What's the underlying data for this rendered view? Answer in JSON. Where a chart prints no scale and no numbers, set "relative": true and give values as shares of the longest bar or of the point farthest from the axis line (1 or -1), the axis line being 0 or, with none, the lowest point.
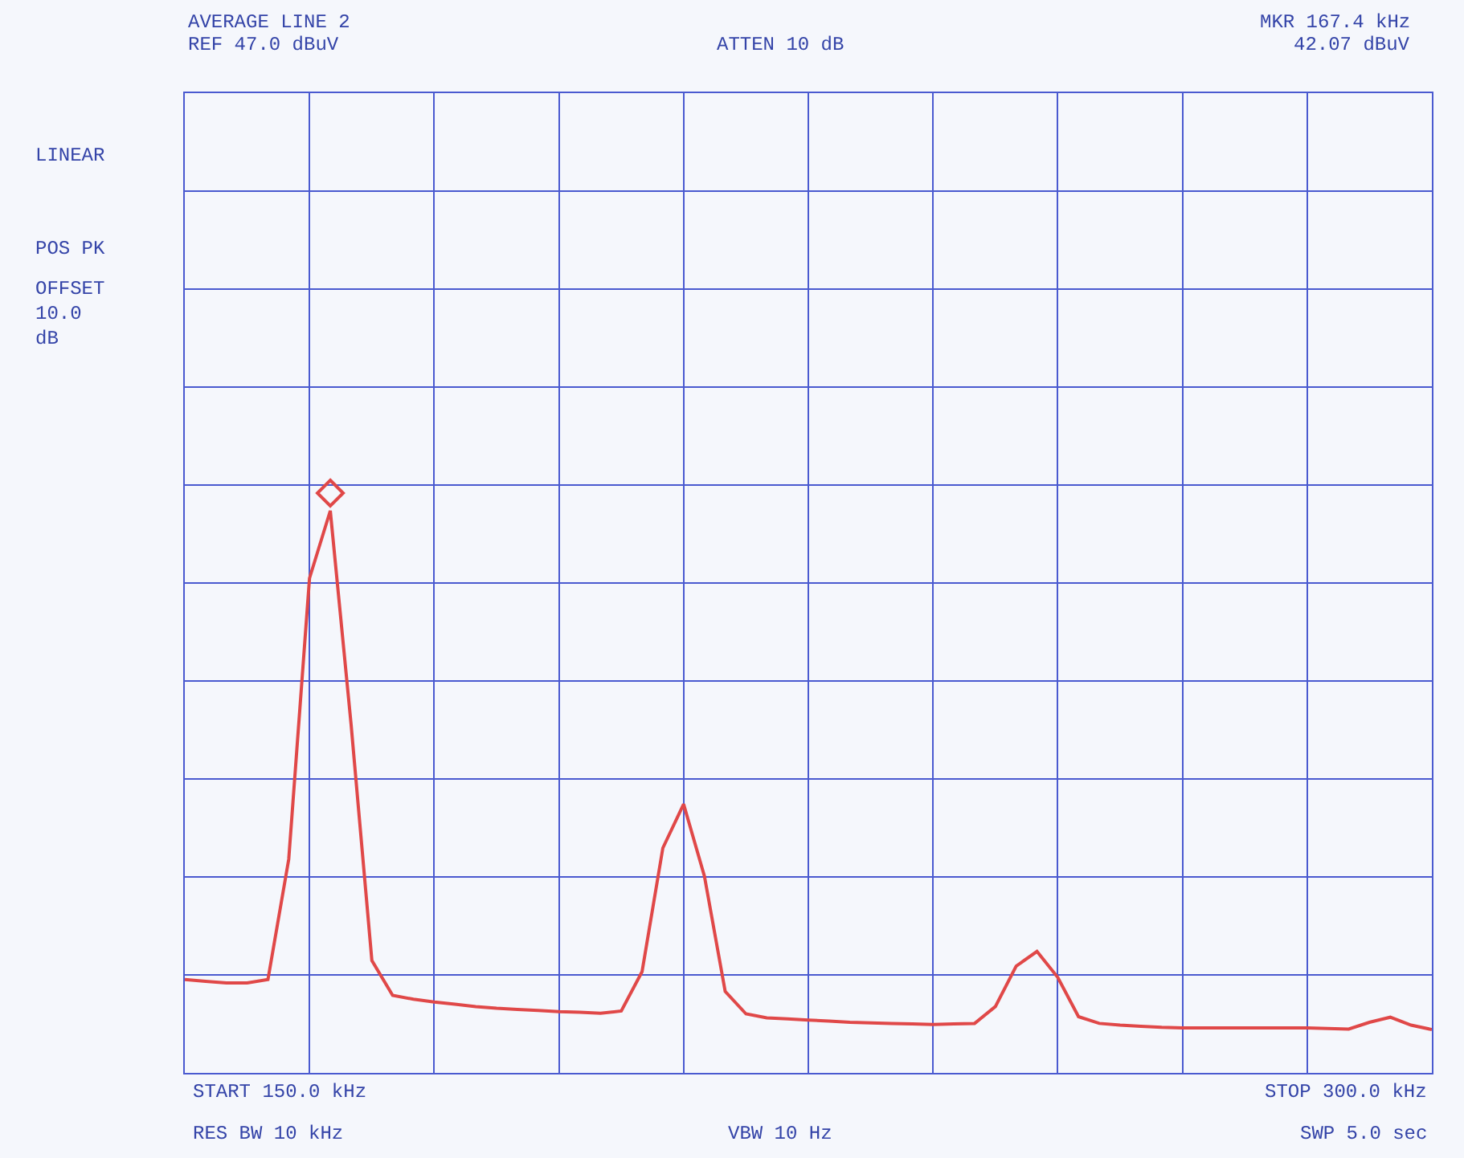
{
  "chart_data": {
    "type": "line",
    "relative": true,
    "categories": [
      null,
      null,
      null,
      null,
      null,
      null,
      null,
      null,
      null,
      null,
      null,
      null,
      null,
      null,
      null,
      null,
      null,
      null,
      null,
      null,
      null,
      null,
      null,
      null,
      null,
      null,
      null,
      null,
      null,
      null,
      null,
      null,
      null,
      null,
      null,
      null,
      null,
      null,
      null,
      null,
      null,
      null,
      null,
      null,
      null,
      null,
      null,
      null,
      null,
      null,
      null,
      null,
      null,
      null,
      null,
      null,
      null,
      null,
      null,
      null,
      null
    ],
    "grid": true,
    "annotations": [
      "AVERAGE LINE 2",
      "REF 47.0 dBuV",
      "ATTEN 10 dB",
      "MKR 167.4 kHz",
      "42.07 dBuV",
      "LINEAR",
      "POS PK",
      "OFFSET 10.0 dB",
      "START 150.0 kHz",
      "RES BW 10 kHz",
      "VBW 10 Hz",
      "STOP 300.0 kHz",
      "SWP 5.0 sec"
    ],
    "series": [
      {
        "color": "#e04848",
        "values": [
          0.166,
          0.163,
          0.16,
          0.16,
          0.166,
          0.38,
          0.88,
          1,
          0.62,
          0.2,
          0.138,
          0.131,
          0.126,
          0.122,
          0.118,
          0.115,
          0.113,
          0.111,
          0.109,
          0.108,
          0.106,
          0.11,
          0.18,
          0.4,
          0.478,
          0.35,
          0.145,
          0.105,
          0.098,
          0.096,
          0.094,
          0.092,
          0.09,
          0.089,
          0.088,
          0.087,
          0.086,
          0.087,
          0.088,
          0.118,
          0.19,
          0.216,
          0.17,
          0.1,
          0.088,
          0.085,
          0.083,
          0.081,
          0.08,
          0.08,
          0.08,
          0.08,
          0.08,
          0.08,
          0.08,
          0.079,
          0.078,
          0.09,
          0.099,
          0.085,
          0.077
        ]
      }
    ]
  }
}
